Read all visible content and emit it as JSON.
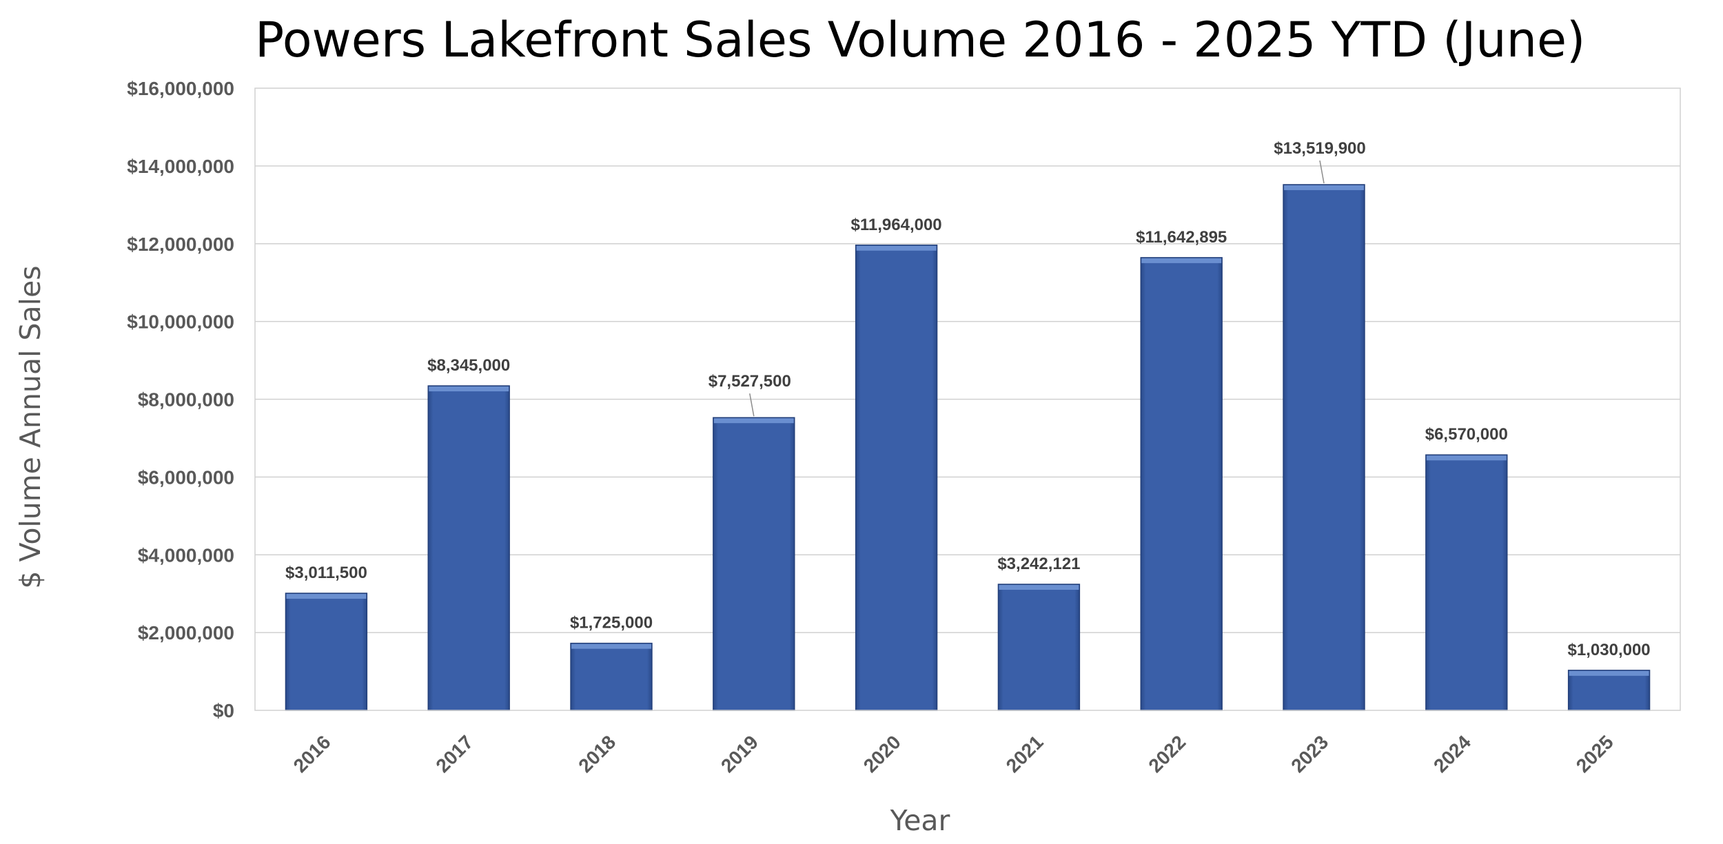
{
  "chart_data": {
    "type": "bar",
    "title": "Powers Lakefront Sales Volume 2016 - 2025 YTD (June)",
    "xlabel": "Year",
    "ylabel": "$ Volume Annual Sales",
    "categories": [
      "2016",
      "2017",
      "2018",
      "2019",
      "2020",
      "2021",
      "2022",
      "2023",
      "2024",
      "2025"
    ],
    "values": [
      3011500,
      8345000,
      1725000,
      7527500,
      11964000,
      3242121,
      11642895,
      13519900,
      6570000,
      1030000
    ],
    "data_labels": [
      "$3,011,500",
      "$8,345,000",
      "$1,725,000",
      "$7,527,500",
      "$11,964,000",
      "$3,242,121",
      "$11,642,895",
      "$13,519,900",
      "$6,570,000",
      "$1,030,000"
    ],
    "ylim": [
      0,
      16000000
    ],
    "yticks": [
      0,
      2000000,
      4000000,
      6000000,
      8000000,
      10000000,
      12000000,
      14000000,
      16000000
    ],
    "ytick_labels": [
      "$0",
      "$2,000,000",
      "$4,000,000",
      "$6,000,000",
      "$8,000,000",
      "$10,000,000",
      "$12,000,000",
      "$14,000,000",
      "$16,000,000"
    ],
    "grid": true,
    "legend": "none",
    "bar_color": "#3A5FA8"
  }
}
